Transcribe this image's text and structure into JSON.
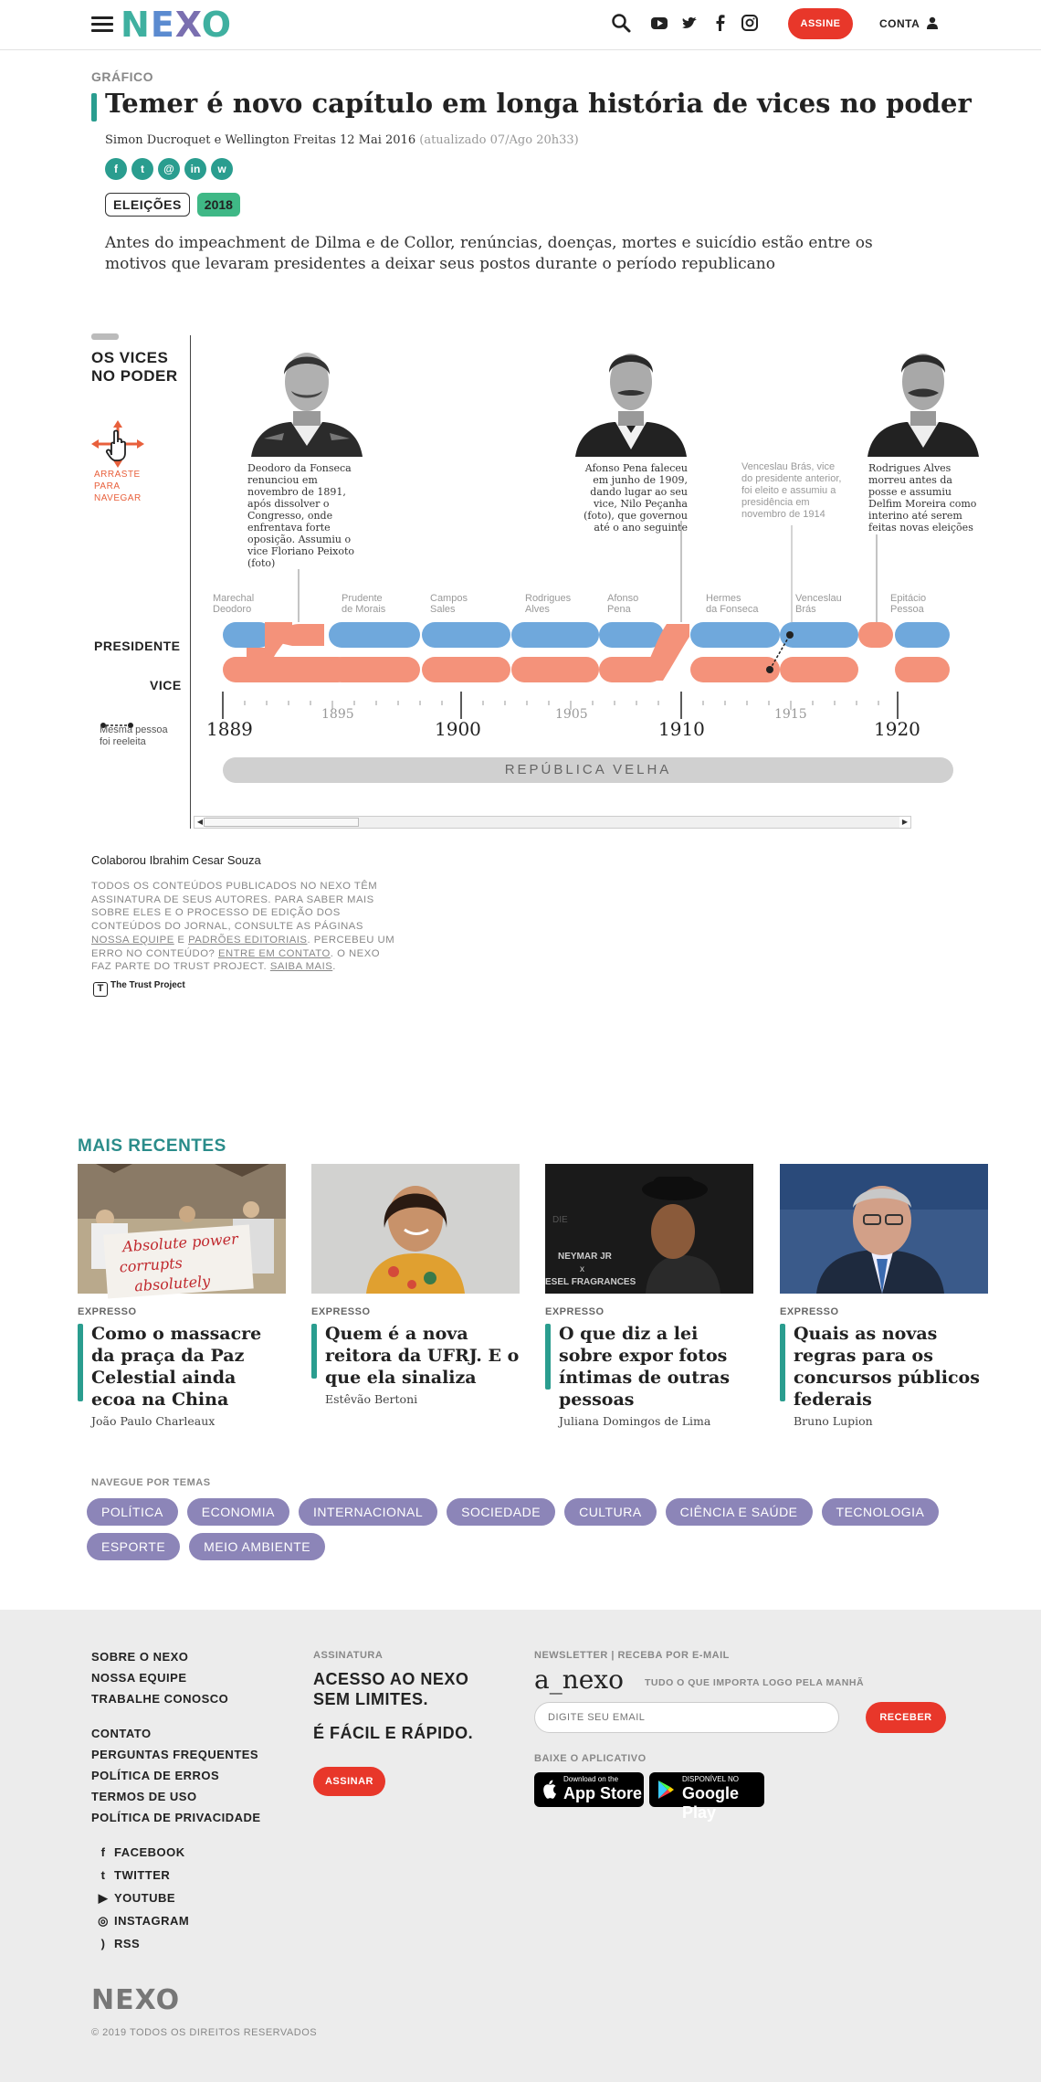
{
  "header": {
    "logo": [
      "N",
      "E",
      "X",
      "O"
    ],
    "subscribe_label": "ASSINE",
    "account_label": "CONTA",
    "icons": [
      "menu-icon",
      "search-icon",
      "youtube-icon",
      "twitter-icon",
      "facebook-icon",
      "instagram-icon",
      "user-icon"
    ]
  },
  "article": {
    "kicker": "GRÁFICO",
    "title": "Temer é novo capítulo em longa história de vices no poder",
    "byline": "Simon Ducroquet e Wellington Freitas 12 Mai 2016",
    "updated": "(atualizado 07/Ago 20h33)",
    "share": [
      {
        "icon": "facebook-icon",
        "glyph": "f"
      },
      {
        "icon": "twitter-icon",
        "glyph": "t"
      },
      {
        "icon": "email-icon",
        "glyph": "@"
      },
      {
        "icon": "linkedin-icon",
        "glyph": "in"
      },
      {
        "icon": "whatsapp-icon",
        "glyph": "w"
      }
    ],
    "tags": [
      "ELEIÇÕES",
      "2018"
    ],
    "lead": "Antes do impeachment de Dilma e de Collor, renúncias, doenças, mortes e suicídio estão entre os motivos que levaram presidentes a deixar seus postos durante o período republicano"
  },
  "graphic": {
    "title_line1": "OS VICES",
    "title_line2": "NO PODER",
    "drag_hint": [
      "ARRASTE",
      "PARA",
      "NAVEGAR"
    ],
    "row_president": "PRESIDENTE",
    "row_vice": "VICE",
    "legend": [
      "Mesma pessoa",
      "foi reeleita"
    ],
    "captions": [
      "Deodoro da Fonseca renunciou em novembro de 1891, após dissolver o Congresso, onde enfrentava forte oposição. Assumiu o vice Floriano Peixoto (foto)",
      "Afonso Pena faleceu em junho de 1909, dando lugar ao seu vice, Nilo Peçanha (foto), que governou até o ano seguinte",
      "Venceslau Brás, vice do presidente anterior, foi eleito e assumiu a presidência em novembro de 1914",
      "Rodrigues Alves morreu antes da posse e assumiu Delfim Moreira como interino até serem feitas novas eleições"
    ],
    "president_names": [
      {
        "l1": "Marechal",
        "l2": "Deodoro"
      },
      {
        "l1": "Prudente",
        "l2": "de Morais"
      },
      {
        "l1": "Campos",
        "l2": "Sales"
      },
      {
        "l1": "Rodrigues",
        "l2": "Alves"
      },
      {
        "l1": "Afonso",
        "l2": "Pena"
      },
      {
        "l1": "Hermes",
        "l2": "da Fonseca"
      },
      {
        "l1": "Venceslau",
        "l2": "Brás"
      },
      {
        "l1": "Epitácio",
        "l2": "Pessoa"
      }
    ],
    "axis_major": [
      "1889",
      "1900",
      "1910",
      "1920"
    ],
    "axis_minor": [
      "1895",
      "1905",
      "1915"
    ],
    "era": "REPÚBLICA VELHA",
    "colors": {
      "president": "#6fa8dc",
      "vice": "#f4927a"
    }
  },
  "credits": {
    "collab": "Colaborou Ibrahim Cesar Souza",
    "disclaimer_1": "TODOS OS CONTEÚDOS PUBLICADOS NO NEXO TÊM ASSINATURA DE SEUS AUTORES. PARA SABER MAIS SOBRE ELES E O PROCESSO DE EDIÇÃO DOS CONTEÚDOS DO JORNAL, CONSULTE AS PÁGINAS",
    "link_team": "NOSSA EQUIPE",
    "conj": "E",
    "link_standards": "PADRÕES EDITORIAIS",
    "disclaimer_2": ". PERCEBEU UM ERRO NO CONTEÚDO?",
    "link_contact": "ENTRE EM CONTATO",
    "disclaimer_3": ". O NEXO FAZ PARTE DO TRUST PROJECT.",
    "link_more": "SAIBA MAIS",
    "disclaimer_end": ".",
    "trust": "The Trust Project"
  },
  "recent": {
    "heading": "MAIS RECENTES",
    "cards": [
      {
        "tag": "EXPRESSO",
        "title": "Como o massacre da praça da Paz Celestial ainda ecoa na China",
        "author": "João Paulo Charleaux",
        "sign_text": [
          "Absolute power",
          "corrupts",
          "absolutely"
        ]
      },
      {
        "tag": "EXPRESSO",
        "title": "Quem é a nova reitora da UFRJ. E o que ela sinaliza",
        "author": "Estêvão Bertoni"
      },
      {
        "tag": "EXPRESSO",
        "title": "O que diz a lei sobre expor fotos íntimas de outras pessoas",
        "author": "Juliana Domingos de Lima",
        "backdrop_text": [
          "DIE",
          "NEYMAR JR",
          "x",
          "ESEL FRAGRANCES"
        ]
      },
      {
        "tag": "EXPRESSO",
        "title": "Quais as novas regras para os concursos públicos federais",
        "author": "Bruno Lupion"
      }
    ]
  },
  "themes": {
    "heading": "NAVEGUE POR TEMAS",
    "items": [
      "POLÍTICA",
      "ECONOMIA",
      "INTERNACIONAL",
      "SOCIEDADE",
      "CULTURA",
      "CIÊNCIA E SAÚDE",
      "TECNOLOGIA",
      "ESPORTE",
      "MEIO AMBIENTE"
    ]
  },
  "footer": {
    "links_1": [
      "SOBRE O NEXO",
      "NOSSA EQUIPE",
      "TRABALHE CONOSCO"
    ],
    "links_2": [
      "CONTATO",
      "PERGUNTAS FREQUENTES",
      "POLÍTICA DE ERROS",
      "TERMOS DE USO",
      "POLÍTICA DE PRIVACIDADE"
    ],
    "social": [
      {
        "label": "FACEBOOK",
        "icon": "facebook-icon",
        "glyph": "f"
      },
      {
        "label": "TWITTER",
        "icon": "twitter-icon",
        "glyph": "t"
      },
      {
        "label": "YOUTUBE",
        "icon": "youtube-icon",
        "glyph": "▶"
      },
      {
        "label": "INSTAGRAM",
        "icon": "instagram-icon",
        "glyph": "◎"
      },
      {
        "label": "RSS",
        "icon": "rss-icon",
        "glyph": ")"
      }
    ],
    "sub_heading": "ASSINATURA",
    "sub_line1": "ACESSO AO NEXO",
    "sub_line2": "SEM LIMITES.",
    "sub_line3": "É FÁCIL E RÁPIDO.",
    "sub_button": "ASSINAR",
    "newsletter_heading": "NEWSLETTER | RECEBA POR E-MAIL",
    "newsletter_name": "a_nexo",
    "newsletter_tagline": "TUDO O QUE IMPORTA LOGO PELA MANHÃ",
    "email_placeholder": "DIGITE SEU EMAIL",
    "receive_button": "RECEBER",
    "app_heading": "BAIXE O APLICATIVO",
    "appstore_small": "Download on the",
    "appstore_big": "App Store",
    "googleplay_small": "DISPONÍVEL NO",
    "googleplay_big": "Google Play",
    "logo": "NEXO",
    "copyright": "© 2019 TODOS OS DIREITOS RESERVADOS"
  }
}
